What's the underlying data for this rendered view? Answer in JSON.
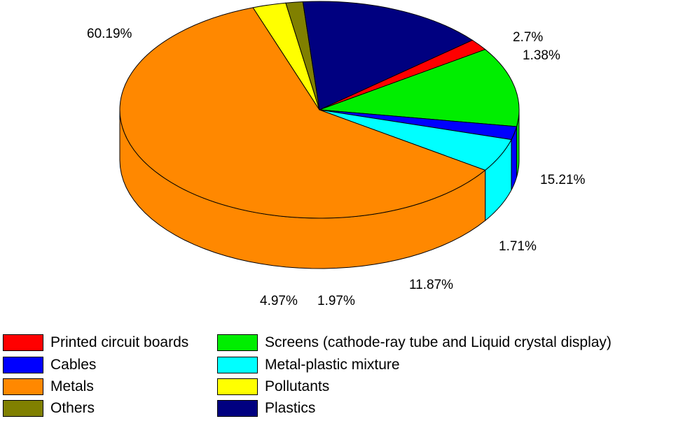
{
  "chart_data": {
    "type": "pie",
    "slices": [
      {
        "label": "Printed circuit boards",
        "value": 1.71,
        "pct_label": "1.71%",
        "color": "#ff0000"
      },
      {
        "label": "Screens (cathode-ray tube and Liquid crystal display)",
        "value": 11.87,
        "pct_label": "11.87%",
        "color": "#00ee00"
      },
      {
        "label": "Cables",
        "value": 1.97,
        "pct_label": "1.97%",
        "color": "#0000ff"
      },
      {
        "label": "Metal-plastic mixture",
        "value": 4.97,
        "pct_label": "4.97%",
        "color": "#00ffff"
      },
      {
        "label": "Metals",
        "value": 60.19,
        "pct_label": "60.19%",
        "color": "#ff8800"
      },
      {
        "label": "Pollutants",
        "value": 2.7,
        "pct_label": "2.7%",
        "color": "#ffff00"
      },
      {
        "label": "Others",
        "value": 1.38,
        "pct_label": "1.38%",
        "color": "#808000"
      },
      {
        "label": "Plastics",
        "value": 15.21,
        "pct_label": "15.21%",
        "color": "#000080"
      }
    ],
    "legend_placement": "bottom"
  }
}
